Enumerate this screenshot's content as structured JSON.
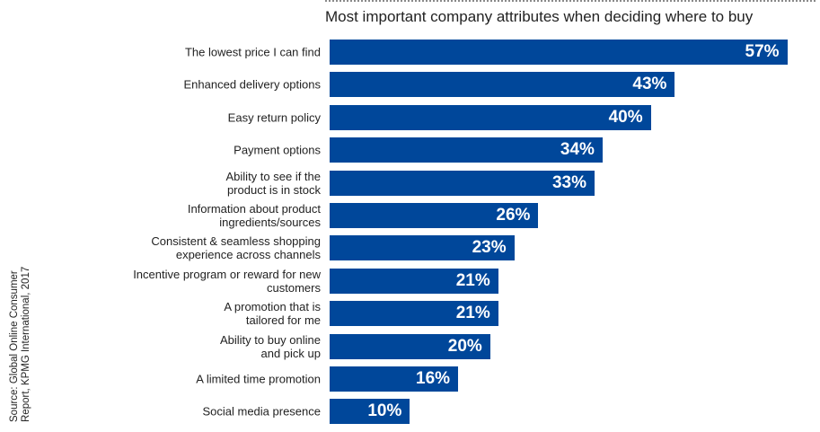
{
  "chart_data": {
    "type": "bar",
    "orientation": "horizontal",
    "title": "Most important company attributes when deciding where to buy",
    "source": "Source: Global Online Consumer Report, KPMG International, 2017",
    "categories": [
      "The lowest price I can find",
      "Enhanced delivery options",
      "Easy return policy",
      "Payment options",
      "Ability to see if the\nproduct is in stock",
      "Information about product\ningredients/sources",
      "Consistent & seamless shopping\nexperience across channels",
      "Incentive program or reward for new\ncustomers",
      "A promotion that is\ntailored for me",
      "Ability to buy online\nand pick up",
      "A limited time promotion",
      "Social media presence"
    ],
    "values": [
      57,
      43,
      40,
      34,
      33,
      26,
      23,
      21,
      21,
      20,
      16,
      10
    ],
    "value_labels": [
      "57%",
      "43%",
      "40%",
      "34%",
      "33%",
      "26%",
      "23%",
      "21%",
      "21%",
      "20%",
      "16%",
      "10%"
    ],
    "unit": "%",
    "grid": false,
    "bar_color": "#00479a"
  }
}
